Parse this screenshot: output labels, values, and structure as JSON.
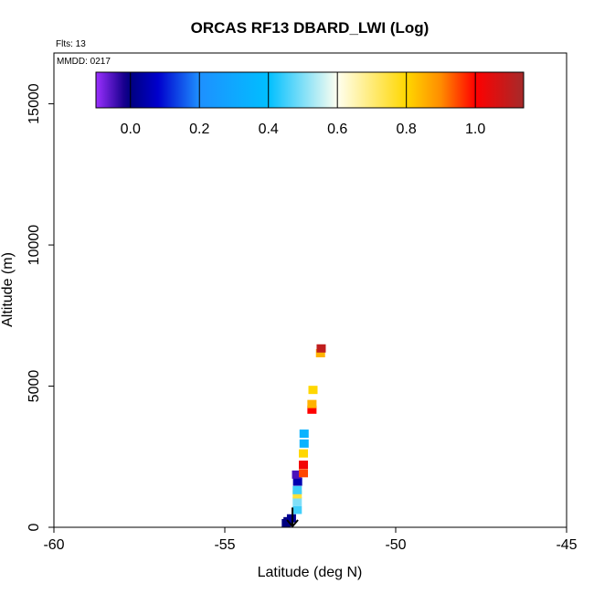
{
  "chart_data": {
    "type": "scatter",
    "title": "ORCAS RF13 DBARD_LWI (Log)",
    "flights_label": "Flts: 13",
    "mmdd_label": "MMDD: 0217",
    "xlabel": "Latitude (deg N)",
    "ylabel": "Altitude (m)",
    "xlim": [
      -60,
      -45
    ],
    "ylim": [
      0,
      16800
    ],
    "x_ticks": [
      -60,
      -55,
      -50,
      -45
    ],
    "x_tick_labels": [
      "-60",
      "-55",
      "-50",
      "-45"
    ],
    "y_ticks": [
      0,
      5000,
      10000,
      15000
    ],
    "y_tick_labels": [
      "0",
      "5000",
      "10000",
      "15000"
    ],
    "colorbar": {
      "range": [
        -0.1,
        1.14
      ],
      "ticks": [
        0.0,
        0.2,
        0.4,
        0.6,
        0.8,
        1.0
      ],
      "tick_labels": [
        "0.0",
        "0.2",
        "0.4",
        "0.6",
        "0.8",
        "1.0"
      ],
      "stops": [
        {
          "v": -0.1,
          "c": "#9b30ff"
        },
        {
          "v": -0.02,
          "c": "#1a0090"
        },
        {
          "v": 0.0,
          "c": "#000080"
        },
        {
          "v": 0.08,
          "c": "#0000cd"
        },
        {
          "v": 0.2,
          "c": "#1e90ff"
        },
        {
          "v": 0.4,
          "c": "#00bfff"
        },
        {
          "v": 0.6,
          "c": "#fffff0"
        },
        {
          "v": 0.8,
          "c": "#ffd700"
        },
        {
          "v": 0.9,
          "c": "#ff8c00"
        },
        {
          "v": 1.0,
          "c": "#ff0000"
        },
        {
          "v": 1.14,
          "c": "#a52a2a"
        }
      ]
    },
    "series": [
      {
        "name": "DBARD_LWI",
        "points": [
          {
            "lat": -53.2,
            "alt": 130,
            "v": 0.0
          },
          {
            "lat": -53.15,
            "alt": 200,
            "v": 0.0
          },
          {
            "lat": -53.05,
            "alt": 300,
            "v": 0.02
          },
          {
            "lat": -52.88,
            "alt": 600,
            "v": 0.45
          },
          {
            "lat": -52.88,
            "alt": 900,
            "v": 0.5
          },
          {
            "lat": -52.88,
            "alt": 1150,
            "v": 0.75
          },
          {
            "lat": -52.88,
            "alt": 1300,
            "v": 0.45
          },
          {
            "lat": -52.87,
            "alt": 1600,
            "v": 0.05
          },
          {
            "lat": -52.9,
            "alt": 1850,
            "v": -0.05
          },
          {
            "lat": -52.7,
            "alt": 1900,
            "v": 0.95
          },
          {
            "lat": -52.7,
            "alt": 2200,
            "v": 1.02
          },
          {
            "lat": -52.7,
            "alt": 2600,
            "v": 0.8
          },
          {
            "lat": -52.68,
            "alt": 2950,
            "v": 0.35
          },
          {
            "lat": -52.68,
            "alt": 3300,
            "v": 0.35
          },
          {
            "lat": -52.45,
            "alt": 4150,
            "v": 1.0
          },
          {
            "lat": -52.45,
            "alt": 4350,
            "v": 0.85
          },
          {
            "lat": -52.42,
            "alt": 4850,
            "v": 0.8
          },
          {
            "lat": -52.2,
            "alt": 6150,
            "v": 0.85
          },
          {
            "lat": -52.18,
            "alt": 6320,
            "v": 1.1
          }
        ]
      }
    ],
    "markers": [
      {
        "type": "arrow-down",
        "lat": -53.02,
        "alt_top": 700,
        "alt_bottom": 0,
        "color": "#000000"
      }
    ]
  }
}
